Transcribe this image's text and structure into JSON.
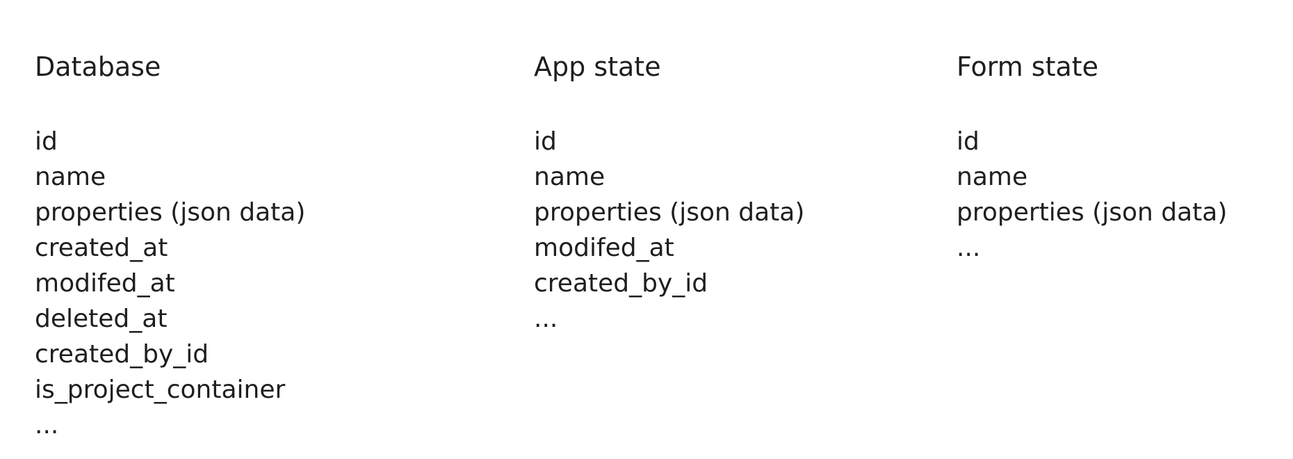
{
  "columns": [
    {
      "title": "Database",
      "fields": [
        "id",
        "name",
        "properties (json data)",
        "created_at",
        "modifed_at",
        "deleted_at",
        "created_by_id",
        "is_project_container",
        "..."
      ]
    },
    {
      "title": "App state",
      "fields": [
        "id",
        "name",
        "properties (json data)",
        "modifed_at",
        "created_by_id",
        "..."
      ]
    },
    {
      "title": "Form state",
      "fields": [
        "id",
        "name",
        "properties (json data)",
        "..."
      ]
    }
  ],
  "colors": {
    "text": "#1e1e1e",
    "background": "#ffffff"
  }
}
